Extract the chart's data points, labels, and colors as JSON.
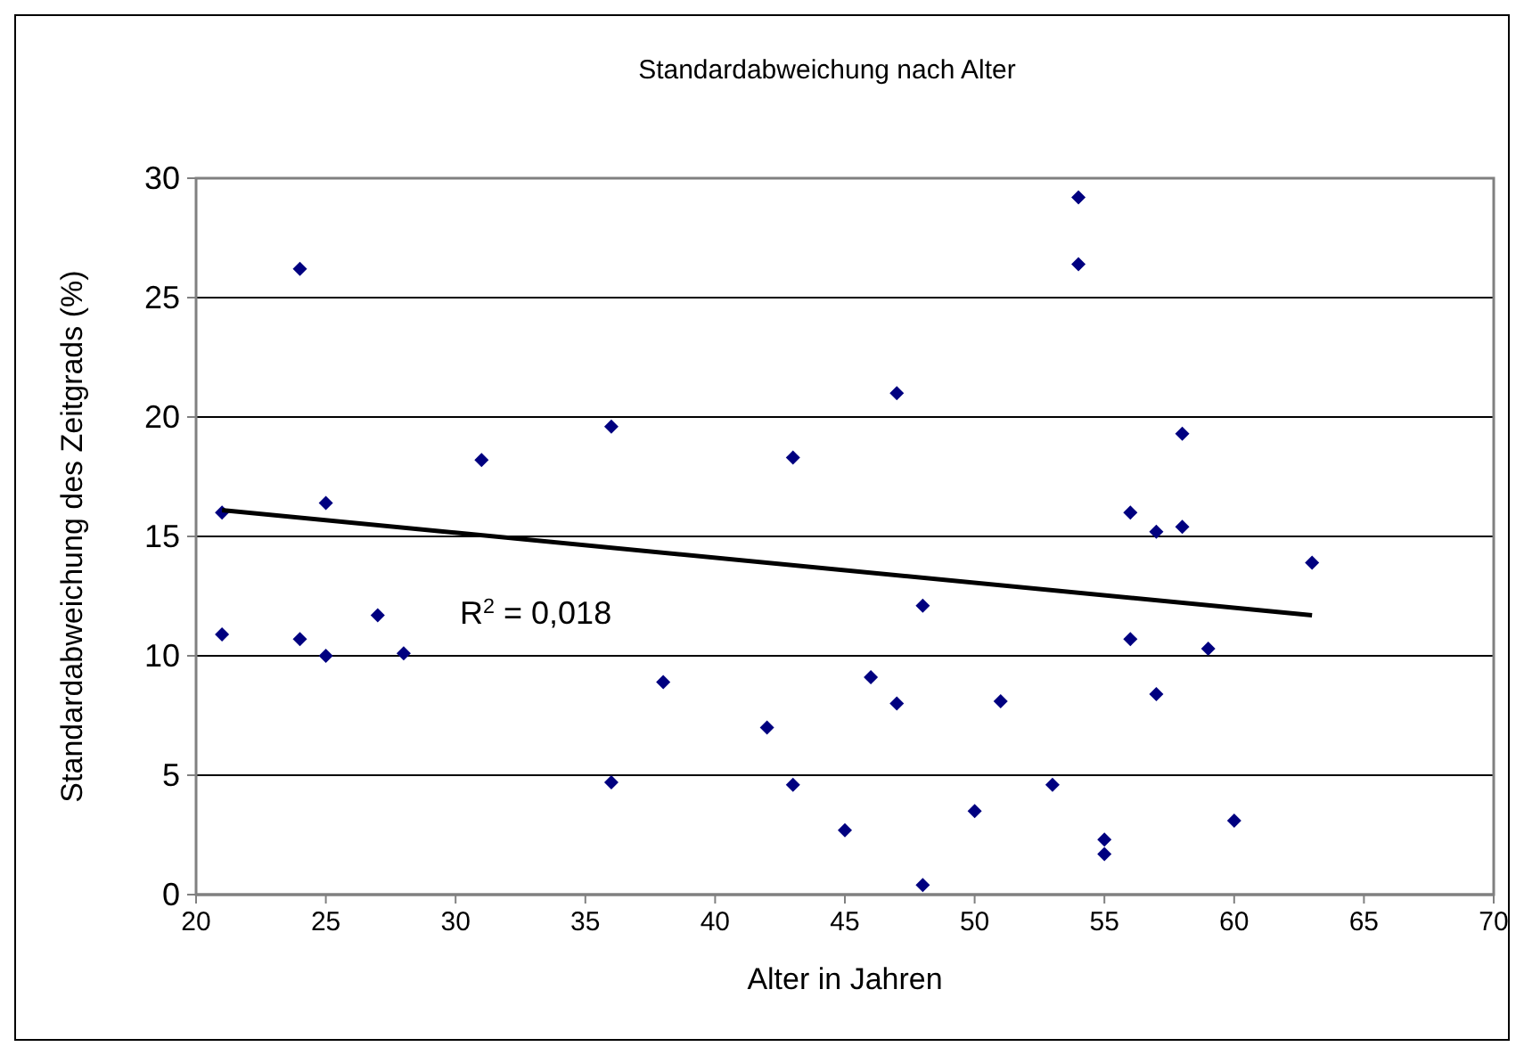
{
  "chart_data": {
    "type": "scatter",
    "title": "Standardabweichung nach Alter",
    "xlabel": "Alter in Jahren",
    "ylabel": "Standardabweichung des Zeitgrads (%)",
    "xlim": [
      20,
      70
    ],
    "xticks": [
      20,
      25,
      30,
      35,
      40,
      45,
      50,
      55,
      60,
      65,
      70
    ],
    "ylim": [
      0,
      30
    ],
    "yticks": [
      0,
      5,
      10,
      15,
      20,
      25,
      30
    ],
    "grid": "y",
    "annotations": [
      "R$^{2}$ = 0,018"
    ],
    "series": [
      {
        "color": "#000080",
        "marker": "diamond",
        "x": [
          21,
          21,
          24,
          24,
          25,
          25,
          27,
          28,
          31,
          36,
          36,
          38,
          42,
          43,
          43,
          45,
          46,
          47,
          47,
          48,
          48,
          50,
          51,
          53,
          54,
          54,
          55,
          55,
          56,
          56,
          57,
          57,
          58,
          58,
          59,
          60,
          63
        ],
        "values": [
          16.0,
          10.9,
          26.2,
          10.7,
          16.4,
          10.0,
          11.7,
          10.1,
          18.2,
          19.6,
          4.7,
          8.9,
          7.0,
          18.3,
          4.6,
          2.7,
          9.1,
          21.0,
          8.0,
          12.1,
          0.4,
          3.5,
          8.1,
          4.6,
          29.2,
          26.4,
          2.3,
          1.7,
          16.0,
          10.7,
          15.2,
          8.4,
          19.3,
          15.4,
          10.3,
          3.1,
          13.9
        ]
      },
      {
        "type": "line",
        "marker": "none",
        "color": "#000000",
        "x": [
          21,
          63
        ],
        "values": [
          16.1,
          11.7
        ]
      }
    ]
  }
}
